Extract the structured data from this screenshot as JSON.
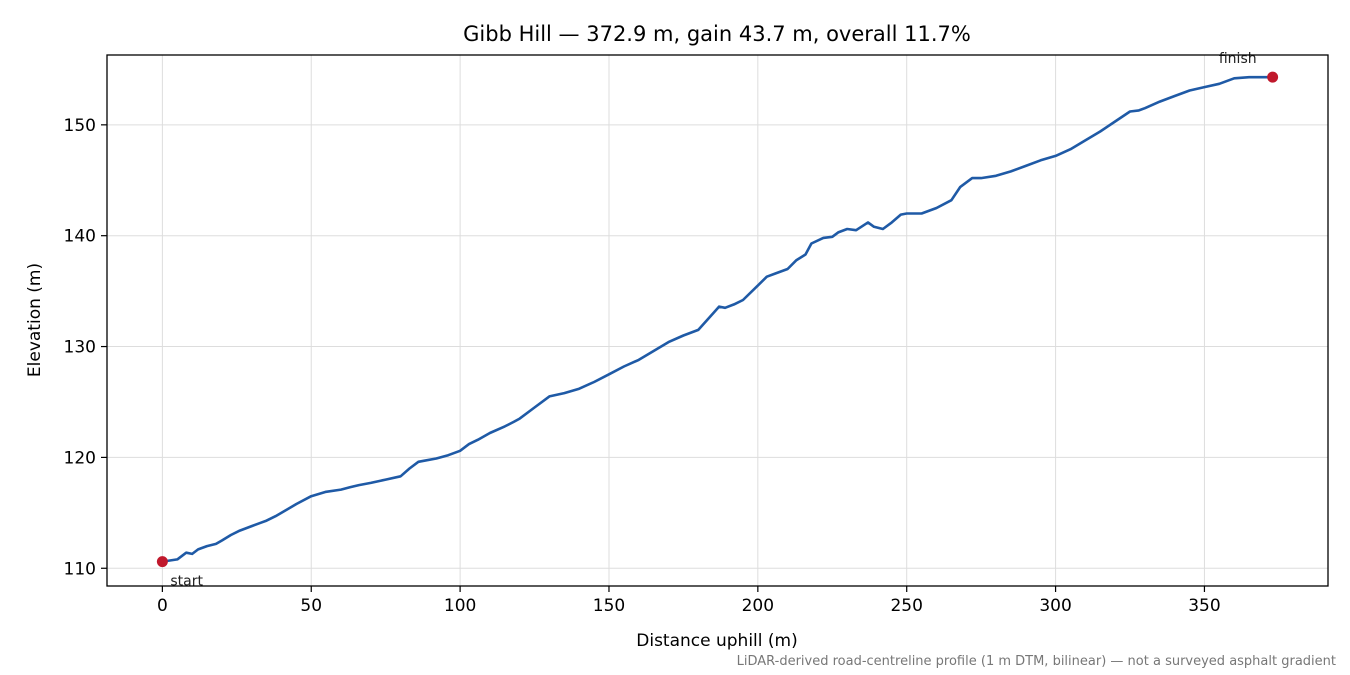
{
  "chart_data": {
    "type": "line",
    "title": "Gibb Hill — 372.9 m, gain 43.7 m, overall 11.7%",
    "xlabel": "Distance uphill (m)",
    "ylabel": "Elevation (m)",
    "xlim": [
      -18.6,
      391.5
    ],
    "ylim": [
      108.4,
      156.3
    ],
    "xticks": [
      0,
      50,
      100,
      150,
      200,
      250,
      300,
      350
    ],
    "yticks": [
      110,
      120,
      130,
      140,
      150
    ],
    "grid": true,
    "line_color": "#1f5aa6",
    "marker_color": "#c0182c",
    "series": [
      {
        "x": [
          0,
          5,
          8,
          10,
          12,
          15,
          18,
          20,
          23,
          26,
          30,
          33,
          35,
          38,
          40,
          45,
          50,
          55,
          60,
          63,
          66,
          70,
          75,
          80,
          83,
          86,
          88,
          92,
          96,
          100,
          103,
          106,
          110,
          115,
          118,
          120,
          125,
          130,
          135,
          140,
          145,
          150,
          155,
          160,
          165,
          170,
          175,
          180,
          185,
          187,
          189,
          192,
          195,
          200,
          203,
          206,
          210,
          213,
          216,
          218,
          222,
          225,
          227,
          230,
          233,
          237,
          239,
          242,
          245,
          248,
          250,
          255,
          260,
          265,
          268,
          272,
          275,
          280,
          285,
          290,
          295,
          300,
          305,
          310,
          315,
          320,
          325,
          328,
          330,
          335,
          340,
          345,
          350,
          355,
          360,
          365,
          368,
          372.9
        ],
        "y": [
          110.6,
          110.8,
          111.4,
          111.3,
          111.7,
          112.0,
          112.2,
          112.5,
          113.0,
          113.4,
          113.8,
          114.1,
          114.3,
          114.7,
          115.0,
          115.8,
          116.5,
          116.9,
          117.1,
          117.3,
          117.5,
          117.7,
          118.0,
          118.3,
          119.0,
          119.6,
          119.7,
          119.9,
          120.2,
          120.6,
          121.2,
          121.6,
          122.2,
          122.8,
          123.2,
          123.5,
          124.5,
          125.5,
          125.8,
          126.2,
          126.8,
          127.5,
          128.2,
          128.8,
          129.6,
          130.4,
          131.0,
          131.5,
          133.0,
          133.6,
          133.5,
          133.8,
          134.2,
          135.5,
          136.3,
          136.6,
          137.0,
          137.8,
          138.3,
          139.3,
          139.8,
          139.9,
          140.3,
          140.6,
          140.5,
          141.2,
          140.8,
          140.6,
          141.2,
          141.9,
          142.0,
          142.0,
          142.5,
          143.2,
          144.4,
          145.2,
          145.2,
          145.4,
          145.8,
          146.3,
          146.8,
          147.2,
          147.8,
          148.6,
          149.4,
          150.3,
          151.2,
          151.3,
          151.5,
          152.1,
          152.6,
          153.1,
          153.4,
          153.7,
          154.2,
          154.3,
          154.3,
          154.3
        ]
      }
    ],
    "annotations": [
      {
        "text": "start",
        "x": 0,
        "y": 110.6
      },
      {
        "text": "finish",
        "x": 372.9,
        "y": 154.3
      }
    ],
    "footnote": "LiDAR-derived road-centreline profile (1 m DTM, bilinear) — not a surveyed asphalt gradient"
  }
}
